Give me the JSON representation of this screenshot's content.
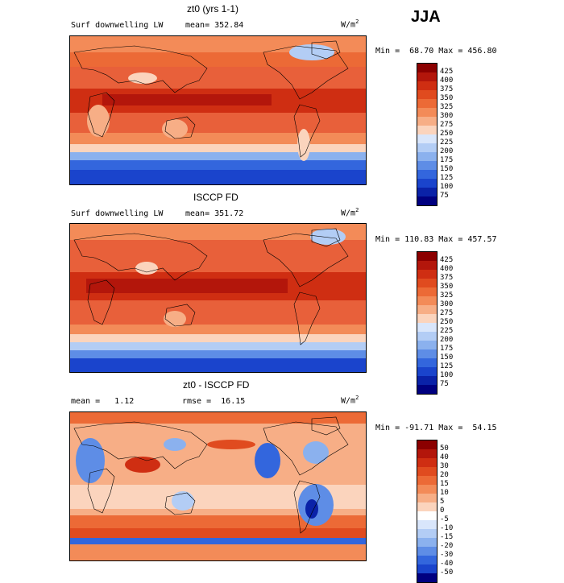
{
  "season": "JJA",
  "panels": [
    {
      "title": "zt0 (yrs 1-1)",
      "left_label": "Surf downwelling LW",
      "mid_label": "mean= 352.84",
      "units_base": "W/m",
      "units_exp": "2",
      "minmax": "Min =  68.70 Max = 456.80",
      "colorbar": {
        "labels": [
          "425",
          "400",
          "375",
          "350",
          "325",
          "300",
          "275",
          "250",
          "225",
          "200",
          "175",
          "150",
          "125",
          "100",
          "75"
        ],
        "colors": [
          "#8b0000",
          "#b3160b",
          "#cf2e12",
          "#e04b1f",
          "#ec6a36",
          "#f38b58",
          "#f7ae86",
          "#fbd4bd",
          "#d9e6fb",
          "#b3cdf5",
          "#8bb1ee",
          "#5e8de6",
          "#3366dd",
          "#1a44cc",
          "#0a22a8",
          "#000080"
        ]
      }
    },
    {
      "title": "ISCCP FD",
      "left_label": "Surf downwelling LW",
      "mid_label": "mean= 351.72",
      "units_base": "W/m",
      "units_exp": "2",
      "minmax": "Min = 110.83 Max = 457.57",
      "colorbar": {
        "labels": [
          "425",
          "400",
          "375",
          "350",
          "325",
          "300",
          "275",
          "250",
          "225",
          "200",
          "175",
          "150",
          "125",
          "100",
          "75"
        ],
        "colors": [
          "#8b0000",
          "#b3160b",
          "#cf2e12",
          "#e04b1f",
          "#ec6a36",
          "#f38b58",
          "#f7ae86",
          "#fbd4bd",
          "#d9e6fb",
          "#b3cdf5",
          "#8bb1ee",
          "#5e8de6",
          "#3366dd",
          "#1a44cc",
          "#0a22a8",
          "#000080"
        ]
      }
    },
    {
      "title": "zt0 - ISCCP FD",
      "left_label": "mean =   1.12",
      "mid_label": "rmse =  16.15",
      "units_base": "W/m",
      "units_exp": "2",
      "minmax": "Min = -91.71 Max =  54.15",
      "colorbar": {
        "labels": [
          "50",
          "40",
          "30",
          "20",
          "15",
          "10",
          "5",
          "0",
          "-5",
          "-10",
          "-15",
          "-20",
          "-30",
          "-40",
          "-50"
        ],
        "colors": [
          "#8b0000",
          "#b3160b",
          "#cf2e12",
          "#e04b1f",
          "#ec6a36",
          "#f38b58",
          "#f7ae86",
          "#fbd4bd",
          "#ffffff",
          "#d9e6fb",
          "#b3cdf5",
          "#8bb1ee",
          "#5e8de6",
          "#3366dd",
          "#1a44cc",
          "#000080"
        ]
      }
    }
  ]
}
